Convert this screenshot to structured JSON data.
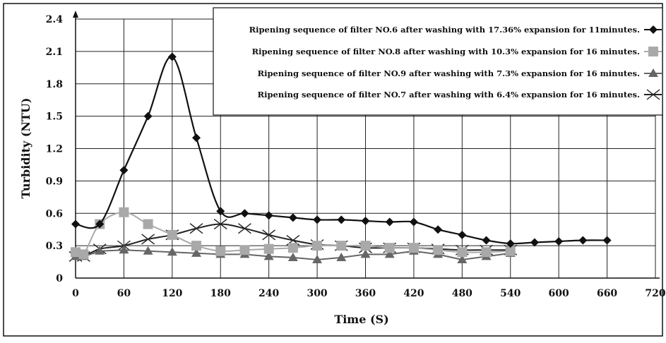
{
  "chart_data": {
    "type": "line",
    "title": "",
    "xlabel": "Time (S)",
    "ylabel": "Turbidity (NTU)",
    "xlim": [
      0,
      720
    ],
    "ylim": [
      0,
      2.4
    ],
    "x_ticks": [
      0,
      60,
      120,
      180,
      240,
      300,
      360,
      420,
      480,
      540,
      600,
      660,
      720
    ],
    "y_ticks": [
      0,
      0.3,
      0.6,
      0.9,
      1.2,
      1.5,
      1.8,
      2.1,
      2.4
    ],
    "x_tick_labels": [
      "0",
      "60",
      "120",
      "180",
      "240",
      "300",
      "360",
      "420",
      "480",
      "540",
      "600",
      "660",
      "720"
    ],
    "y_tick_labels": [
      "0",
      "0.3",
      "0.6",
      "0.9",
      "1.2",
      "1.5",
      "1.8",
      "2.1",
      "2.4"
    ],
    "grid": true,
    "legend_position": "top-right",
    "series": [
      {
        "name": "Ripening sequence of filter NO.6 after washing with 17.36% expansion for 11minutes.",
        "color": "#111111",
        "marker": "diamond",
        "smooth": true,
        "x": [
          0,
          30,
          60,
          90,
          120,
          150,
          180,
          210,
          240,
          270,
          300,
          330,
          360,
          390,
          420,
          450,
          480,
          510,
          540,
          570,
          600,
          630,
          660
        ],
        "y": [
          0.5,
          0.5,
          1.0,
          1.5,
          2.05,
          1.3,
          0.62,
          0.6,
          0.58,
          0.56,
          0.54,
          0.54,
          0.53,
          0.52,
          0.52,
          0.45,
          0.4,
          0.35,
          0.32,
          0.33,
          0.34,
          0.35,
          0.35
        ]
      },
      {
        "name": "Ripening sequence of filter NO.8 after washing with 10.3% expansion for 16 minutes.",
        "color": "#a9a9a9",
        "marker": "square",
        "smooth": true,
        "x": [
          0,
          10,
          30,
          60,
          90,
          120,
          150,
          180,
          210,
          240,
          270,
          300,
          330,
          360,
          390,
          420,
          450,
          480,
          510,
          540
        ],
        "y": [
          0.24,
          0.22,
          0.5,
          0.61,
          0.5,
          0.4,
          0.3,
          0.25,
          0.26,
          0.27,
          0.28,
          0.3,
          0.3,
          0.3,
          0.28,
          0.28,
          0.26,
          0.24,
          0.24,
          0.25
        ]
      },
      {
        "name": "Ripening sequence of filter NO.9 after washing with 7.3% expansion for 16 minutes.",
        "color": "#666666",
        "marker": "triangle",
        "smooth": false,
        "x": [
          0,
          10,
          30,
          60,
          90,
          120,
          150,
          180,
          210,
          240,
          270,
          300,
          330,
          360,
          390,
          420,
          450,
          480,
          510,
          540
        ],
        "y": [
          0.2,
          0.2,
          0.25,
          0.26,
          0.25,
          0.24,
          0.23,
          0.22,
          0.22,
          0.2,
          0.19,
          0.17,
          0.19,
          0.22,
          0.22,
          0.25,
          0.22,
          0.17,
          0.2,
          0.23
        ]
      },
      {
        "name": "Ripening sequence of filter NO.7 after washing with 6.4% expansion for 16 minutes.",
        "color": "#222222",
        "marker": "x",
        "smooth": true,
        "x": [
          0,
          10,
          30,
          60,
          90,
          120,
          150,
          180,
          210,
          240,
          270,
          300,
          330,
          360,
          390,
          420,
          450,
          480,
          510,
          540
        ],
        "y": [
          0.2,
          0.2,
          0.27,
          0.3,
          0.36,
          0.4,
          0.46,
          0.5,
          0.46,
          0.4,
          0.35,
          0.31,
          0.3,
          0.28,
          0.28,
          0.28,
          0.27,
          0.26,
          0.26,
          0.26
        ]
      }
    ]
  }
}
